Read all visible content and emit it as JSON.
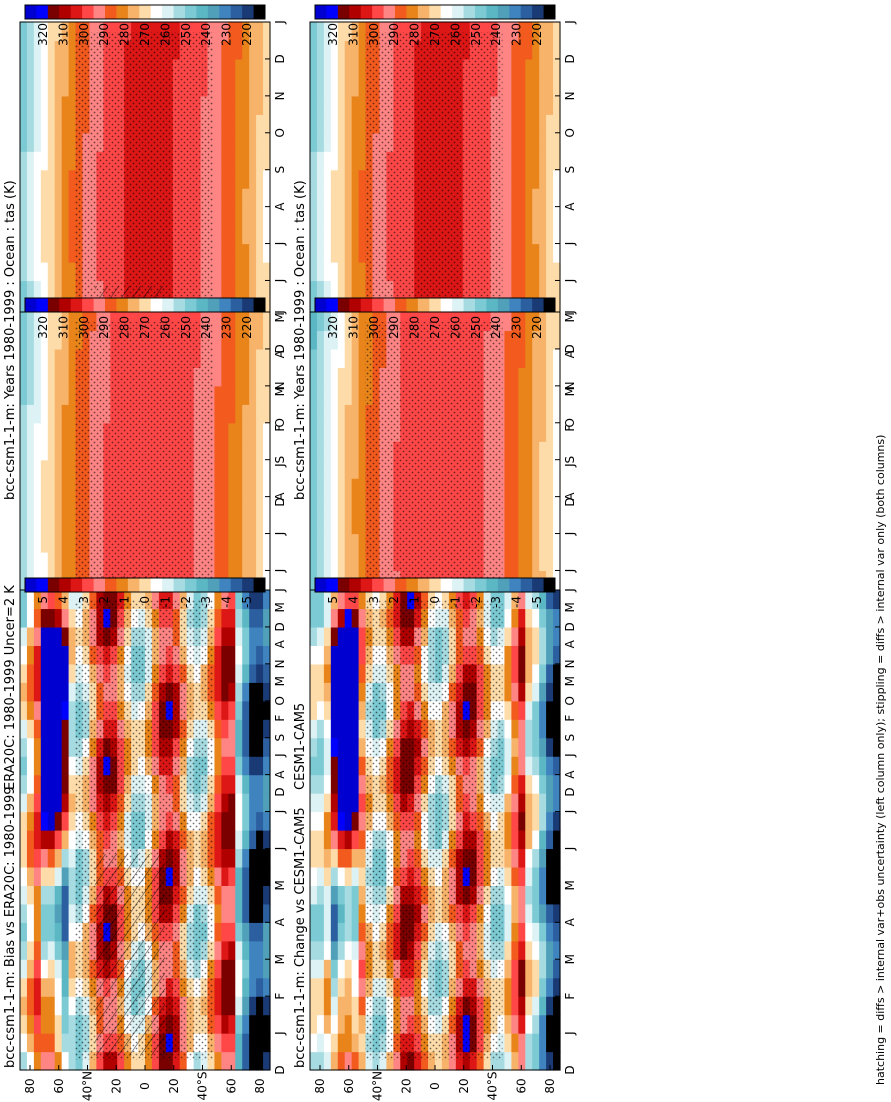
{
  "figure": {
    "caption": "hatching = diffs > internal var+obs uncertainty (left column only); stippling = diffs > internal var only (both columns)"
  },
  "chart_data": [
    {
      "type": "heatmap",
      "title": "bcc-csm1-1-m: Years 1980-1999 : Ocean : tas (K)",
      "x_ticks": [
        "D",
        "J",
        "F",
        "M",
        "A",
        "M",
        "J",
        "J",
        "A",
        "S",
        "O",
        "N",
        "D",
        "J"
      ],
      "y_ticks": [
        "80",
        "60",
        "40°N",
        "20",
        "0",
        "20",
        "40°S",
        "60",
        "80"
      ],
      "colorbar": {
        "ticks": [
          "320",
          "310",
          "300",
          "290",
          "280",
          "270",
          "260",
          "250",
          "240",
          "230",
          "220"
        ],
        "range": [
          215,
          325
        ]
      },
      "field": {
        "max": 302,
        "min_north": 252,
        "min_south": 271
      },
      "stippling": true,
      "hatching": true
    },
    {
      "type": "heatmap",
      "title": "bcc-csm1-1-m: Years 1980-1999 : Ocean : tas (K)",
      "x_ticks": [
        "D",
        "J",
        "F",
        "M",
        "A",
        "M",
        "J",
        "J",
        "A",
        "S",
        "O",
        "N",
        "D",
        "J"
      ],
      "y_ticks": [
        "80",
        "60",
        "40°N",
        "20",
        "0",
        "20",
        "40°S",
        "60",
        "80"
      ],
      "colorbar": {
        "ticks": [
          "320",
          "310",
          "300",
          "290",
          "280",
          "270",
          "260",
          "250",
          "240",
          "230",
          "220"
        ],
        "range": [
          215,
          325
        ]
      },
      "field": {
        "max": 302,
        "min_north": 252,
        "min_south": 271
      },
      "stippling": true,
      "hatching": false
    },
    {
      "type": "heatmap",
      "title": "ERA20C: 1980-1999 Uncer=2 K",
      "x_ticks": [
        "D",
        "J",
        "F",
        "M",
        "A",
        "M",
        "J",
        "J",
        "A",
        "S",
        "O",
        "N",
        "D",
        "J"
      ],
      "y_ticks": [
        "80",
        "60",
        "40°N",
        "20",
        "0",
        "20",
        "40°S",
        "60",
        "80"
      ],
      "colorbar": {
        "ticks": [
          "320",
          "310",
          "300",
          "290",
          "280",
          "270",
          "260",
          "250",
          "240",
          "230",
          "220"
        ],
        "range": [
          215,
          325
        ]
      },
      "field": {
        "max": 300,
        "min_north": 253,
        "min_south": 270
      },
      "stippling": true,
      "hatching": true
    },
    {
      "type": "heatmap",
      "title": "CESM1-CAM5",
      "x_ticks": [
        "D",
        "J",
        "F",
        "M",
        "A",
        "M",
        "J",
        "J",
        "A",
        "S",
        "O",
        "N",
        "D",
        "J"
      ],
      "y_ticks": [
        "80",
        "60",
        "40°N",
        "20",
        "0",
        "20",
        "40°S",
        "60",
        "80"
      ],
      "colorbar": {
        "ticks": [
          "320",
          "310",
          "300",
          "290",
          "280",
          "270",
          "260",
          "250",
          "240",
          "230",
          "220"
        ],
        "range": [
          215,
          325
        ]
      },
      "field": {
        "max": 300,
        "min_north": 250,
        "min_south": 268
      },
      "stippling": true,
      "hatching": false
    },
    {
      "type": "heatmap",
      "title": "bcc-csm1-1-m: Bias vs ERA20C: 1980-1999",
      "x_ticks": [
        "D",
        "J",
        "F",
        "M",
        "A",
        "M",
        "J",
        "J",
        "A",
        "S",
        "O",
        "N",
        "D",
        "J"
      ],
      "y_ticks": [
        "80",
        "60",
        "40°N",
        "20",
        "0",
        "20",
        "40°S",
        "60",
        "80"
      ],
      "colorbar": {
        "ticks": [
          "5",
          "4",
          "3",
          "2",
          "1",
          "0",
          "-1",
          "-2",
          "-3",
          "-4",
          "-5"
        ],
        "range": [
          -5.5,
          5.5
        ]
      },
      "field": {
        "kind": "diff"
      },
      "stippling": true,
      "hatching": true
    },
    {
      "type": "heatmap",
      "title": "bcc-csm1-1-m: Change vs CESM1-CAM5",
      "x_ticks": [
        "D",
        "J",
        "F",
        "M",
        "A",
        "M",
        "J",
        "J",
        "A",
        "S",
        "O",
        "N",
        "D",
        "J"
      ],
      "y_ticks": [
        "80",
        "60",
        "40°N",
        "20",
        "0",
        "20",
        "40°S",
        "60",
        "80"
      ],
      "colorbar": {
        "ticks": [
          "5",
          "4",
          "3",
          "2",
          "1",
          "0",
          "-1",
          "-2",
          "-3",
          "-4",
          "-5"
        ],
        "range": [
          -5.5,
          5.5
        ]
      },
      "field": {
        "kind": "diff"
      },
      "stippling": true,
      "hatching": false
    }
  ],
  "colors": {
    "scale": [
      "#0000d0",
      "#0000ff",
      "#7a0000",
      "#b00000",
      "#dd1616",
      "#ff4747",
      "#ff8484",
      "#f25a1e",
      "#e8841a",
      "#f7b36a",
      "#fddcaa",
      "#ffffff",
      "#ddf2f5",
      "#a7dbe2",
      "#7ccad3",
      "#5bb7c4",
      "#4fa0b8",
      "#3f84bf",
      "#2c5fa0",
      "#1a3a75",
      "#000000"
    ]
  }
}
